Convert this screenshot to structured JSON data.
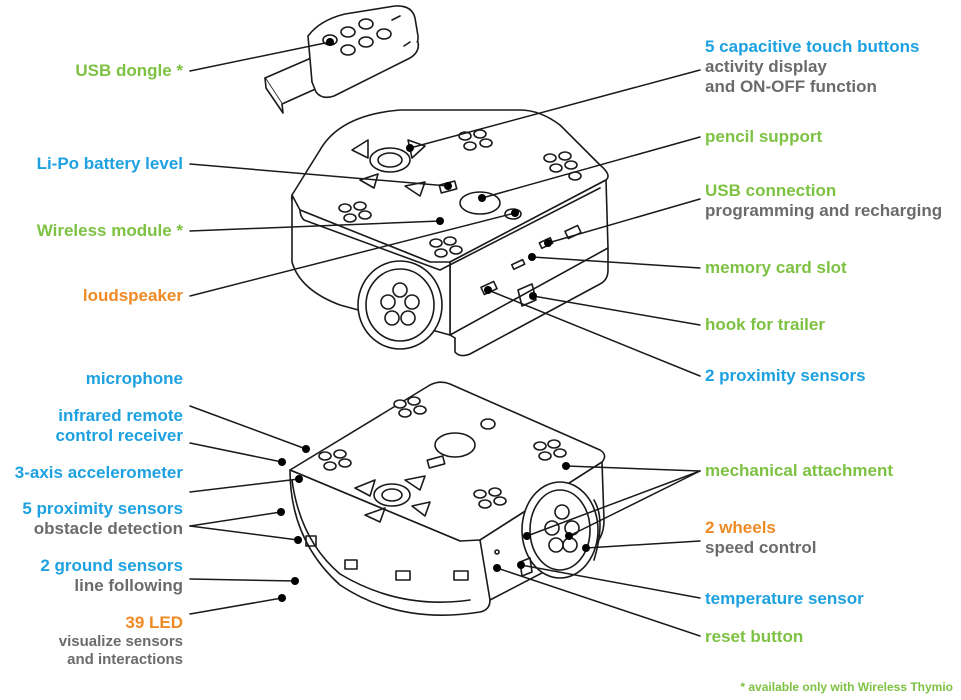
{
  "colors": {
    "green": "#7dc242",
    "blue": "#1da1e0",
    "orange": "#f08a24",
    "gray": "#6b6b6b",
    "line": "#1a1a1a"
  },
  "labels": {
    "usb_dongle": "USB dongle *",
    "touch_buttons": "5 capacitive touch buttons",
    "touch_buttons_sub1": "activity display",
    "touch_buttons_sub2": "and ON-OFF function",
    "battery": "Li-Po battery level",
    "pencil": "pencil support",
    "usb_conn": "USB connection",
    "usb_conn_sub": "programming and recharging",
    "wireless": "Wireless  module *",
    "loudspeaker": "loudspeaker",
    "memory": "memory card slot",
    "hook": "hook for trailer",
    "prox2": "2 proximity sensors",
    "microphone": "microphone",
    "ir_remote1": "infrared remote",
    "ir_remote2": "control receiver",
    "accel": "3-axis accelerometer",
    "prox5": "5 proximity sensors",
    "prox5_sub": "obstacle detection",
    "ground": "2 ground sensors",
    "ground_sub": "line following",
    "led": "39 LED",
    "led_sub1": "visualize sensors",
    "led_sub2": "and interactions",
    "mech": "mechanical attachment",
    "wheels": "2 wheels",
    "wheels_sub": "speed control",
    "temp": "temperature sensor",
    "reset": "reset button"
  },
  "footnote": "*  available only with Wireless Thymio"
}
